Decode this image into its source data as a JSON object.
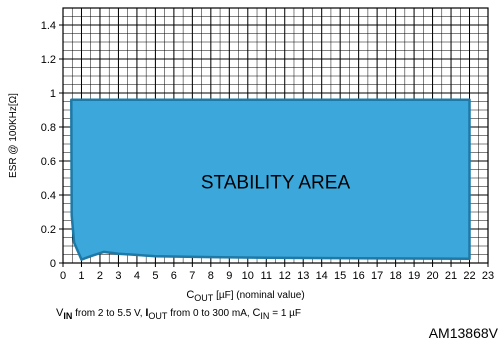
{
  "chart_data": {
    "type": "area",
    "title": "",
    "xlabel": {
      "main": "C",
      "sub": "OUT",
      "rest": " [µF] (nominal value)"
    },
    "ylabel": "ESR @ 100KHz[Ω]",
    "xlim": [
      0,
      23
    ],
    "ylim": [
      0,
      1.5
    ],
    "x_ticks": [
      0,
      1,
      2,
      3,
      4,
      5,
      6,
      7,
      8,
      9,
      10,
      11,
      12,
      13,
      14,
      15,
      16,
      17,
      18,
      19,
      20,
      21,
      22,
      23
    ],
    "x_tick_labels": [
      "0",
      "1",
      "2",
      "3",
      "4",
      "5",
      "6",
      "7",
      "8",
      "9",
      "10",
      "11",
      "12",
      "13",
      "14",
      "15",
      "16",
      "17",
      "18",
      "19",
      "20",
      "21",
      "22",
      "23"
    ],
    "y_ticks": [
      0,
      0.2,
      0.4,
      0.6,
      0.8,
      1,
      1.2,
      1.4
    ],
    "y_tick_labels": [
      "0",
      "0.2",
      "0.4",
      "0.6",
      "0.8",
      "1",
      "1.2",
      "1.4"
    ],
    "grid": true,
    "grid_minor_x": 0.5,
    "grid_minor_y": 0.05,
    "region": {
      "name": "STABILITY AREA",
      "fill": "#3ba7da",
      "edge": "#1e79a6",
      "upper_boundary": [
        {
          "x": 0.45,
          "y": 0.96
        },
        {
          "x": 22,
          "y": 0.96
        }
      ],
      "lower_boundary": [
        {
          "x": 0.45,
          "y": 0.96
        },
        {
          "x": 0.47,
          "y": 0.28
        },
        {
          "x": 0.6,
          "y": 0.12
        },
        {
          "x": 1,
          "y": 0.02
        },
        {
          "x": 1.5,
          "y": 0.04
        },
        {
          "x": 2.2,
          "y": 0.065
        },
        {
          "x": 3,
          "y": 0.055
        },
        {
          "x": 5,
          "y": 0.04
        },
        {
          "x": 8,
          "y": 0.035
        },
        {
          "x": 12,
          "y": 0.03
        },
        {
          "x": 22,
          "y": 0.025
        },
        {
          "x": 22,
          "y": 0.96
        }
      ],
      "label": "STABILITY AREA",
      "label_at": {
        "x": 11.5,
        "y": 0.48
      }
    }
  },
  "conditions": {
    "v_symbol": "V",
    "v_sub": "IN",
    "v_text": " from 2 to  5.5 V,  ",
    "i_symbol": "I",
    "i_sub": "OUT",
    "i_text": " from 0 to 300 mA,  ",
    "c_symbol": "C",
    "c_sub": "IN",
    "c_text": " = 1 µF"
  },
  "figure_id": "AM13868V"
}
